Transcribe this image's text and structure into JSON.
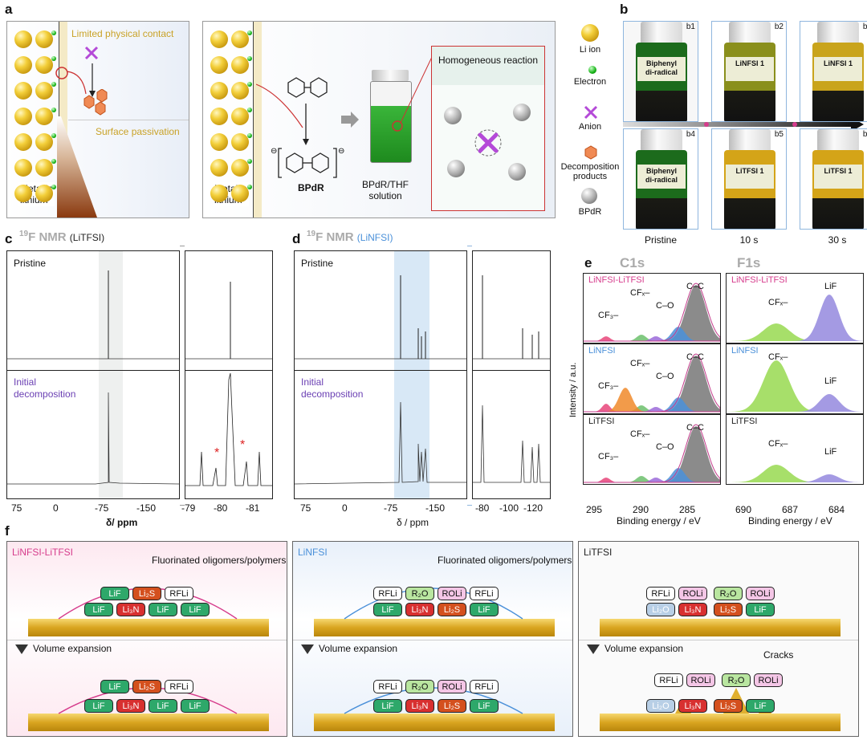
{
  "panel_labels": {
    "a": "a",
    "b": "b",
    "c": "c",
    "d": "d",
    "e": "e",
    "f": "f"
  },
  "panel_a": {
    "left": {
      "limited_contact": "Limited physical contact",
      "surface_passivation": "Surface passivation",
      "metallic": "Metallic",
      "lithium": "lithium"
    },
    "right": {
      "homogeneous": "Homogeneous reaction",
      "bpdr": "BPdR",
      "solution_line1": "BPdR/THF",
      "solution_line2": "solution",
      "metallic": "Metallic",
      "lithium": "lithium"
    },
    "legend": [
      {
        "name": "li-ion",
        "label": "Li ion"
      },
      {
        "name": "electron",
        "label": "Electron"
      },
      {
        "name": "anion",
        "label": "Anion"
      },
      {
        "name": "decomposition",
        "label": "Decomposition\nproducts"
      },
      {
        "name": "bpdr",
        "label": "BPdR"
      }
    ]
  },
  "panel_b": {
    "vials": [
      {
        "id": "b1",
        "text": "Biphenyl\ndi-radical",
        "color": "#1c6b1c"
      },
      {
        "id": "b2",
        "text": "LiNFSI 1",
        "color": "#8a8f1c"
      },
      {
        "id": "b3",
        "text": "LiNFSI 1",
        "color": "#c9a41c"
      },
      {
        "id": "b4",
        "text": "Biphenyl\ndi-radical",
        "color": "#1c6b1c"
      },
      {
        "id": "b5",
        "text": "LiTFSI 1",
        "color": "#d4a418"
      },
      {
        "id": "b6",
        "text": "LiTFSI 1",
        "color": "#d4a418"
      }
    ],
    "times": [
      "Pristine",
      "10 s",
      "30 s"
    ]
  },
  "panel_c": {
    "title_sup": "19",
    "title": "F NMR",
    "subtitle": "(LiTFSI)",
    "pristine": "Pristine",
    "initial": "Initial",
    "decomposition": "decomposition",
    "xticks": [
      "75",
      "0",
      "-75",
      "-150"
    ],
    "zoom_ticks": [
      "-79",
      "-80",
      "-81"
    ],
    "xlabel": "δ/ ppm",
    "marker": "*"
  },
  "panel_d": {
    "title_sup": "19",
    "title": "F NMR",
    "subtitle": "(LiNFSI)",
    "pristine": "Pristine",
    "initial": "Initial",
    "decomposition": "decomposition",
    "xticks": [
      "75",
      "0",
      "-75",
      "-150"
    ],
    "zoom_ticks": [
      "-80",
      "-100",
      "-120"
    ],
    "xlabel": "δ / ppm"
  },
  "panel_e": {
    "c1s": "C1s",
    "f1s": "F1s",
    "ylabel": "Intensity / a.u.",
    "xlabel": "Binding energy / eV",
    "c1s_ticks": [
      "295",
      "290",
      "285"
    ],
    "f1s_ticks": [
      "690",
      "687",
      "684"
    ],
    "rows": [
      {
        "label": "LiNFSI-LiTFSI",
        "color": "#d63c8c"
      },
      {
        "label": "LiNFSI",
        "color": "#4a90d9"
      },
      {
        "label": "LiTFSI",
        "color": "#222222"
      }
    ],
    "annotations": {
      "cf3": "CF₃–",
      "cfx": "CFₓ–",
      "co": "C–O",
      "cc": "C–C",
      "lif": "LiF"
    }
  },
  "panel_f": {
    "fluorinated": "Fluorinated oligomers/polymers",
    "volume_expansion": "Volume expansion",
    "cracks": "Cracks",
    "titles": [
      {
        "label": "LiNFSI-LiTFSI",
        "color": "#d63c8c"
      },
      {
        "label": "LiNFSI",
        "color": "#4a90d9"
      },
      {
        "label": "LiTFSI",
        "color": "#222222"
      }
    ],
    "chips": {
      "lif": "LiF",
      "li2s": "Li₂S",
      "rfli": "RFLi",
      "li3n": "Li₃N",
      "r2o": "R₂O",
      "roli": "ROLi",
      "li2o": "Li₂O"
    }
  }
}
